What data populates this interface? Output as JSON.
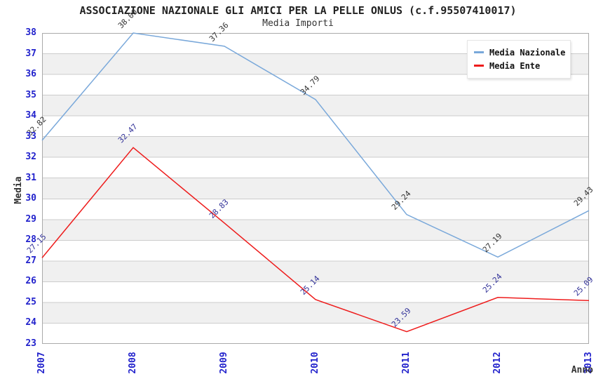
{
  "title": "ASSOCIAZIONE NAZIONALE GLI AMICI PER LA PELLE ONLUS (c.f.95507410017)",
  "subtitle": "Media Importi",
  "chart_data": {
    "type": "line",
    "categories": [
      "2007",
      "2008",
      "2009",
      "2010",
      "2011",
      "2012",
      "2013"
    ],
    "series": [
      {
        "name": "Media Nazionale",
        "color": "#79a8da",
        "label_color": "#333333",
        "values": [
          32.82,
          38.0,
          37.36,
          34.79,
          29.24,
          27.19,
          29.43
        ],
        "point_labels": [
          "32.82",
          "38.00",
          "37.36",
          "34.79",
          "29.24",
          "27.19",
          "29.43"
        ]
      },
      {
        "name": "Media Ente",
        "color": "#ee1c1c",
        "label_color": "#333399",
        "values": [
          27.15,
          32.47,
          28.83,
          25.14,
          23.59,
          25.24,
          25.09
        ],
        "point_labels": [
          "27.15",
          "32.47",
          "28.83",
          "25.14",
          "23.59",
          "25.24",
          "25.09"
        ]
      }
    ],
    "xlabel": "Anno",
    "ylabel": "Media",
    "ylim": [
      23,
      38
    ],
    "ytick_step": 1,
    "grid": "horizontal-only",
    "legend_position": "top-right",
    "band_colors": [
      "#ffffff",
      "#f0f0f0"
    ],
    "grid_color": "#cccccc",
    "border_color": "#aaaaaa",
    "tick_label_color": "#2222cc",
    "axis_title_color": "#333333"
  }
}
